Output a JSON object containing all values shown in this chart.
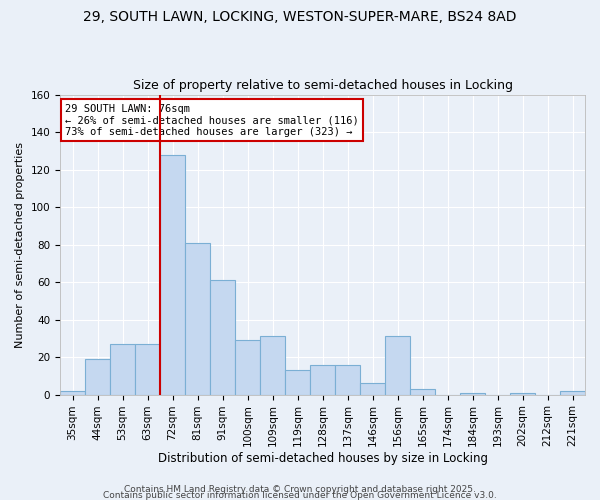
{
  "title1": "29, SOUTH LAWN, LOCKING, WESTON-SUPER-MARE, BS24 8AD",
  "title2": "Size of property relative to semi-detached houses in Locking",
  "xlabel": "Distribution of semi-detached houses by size in Locking",
  "ylabel": "Number of semi-detached properties",
  "bar_labels": [
    "35sqm",
    "44sqm",
    "53sqm",
    "63sqm",
    "72sqm",
    "81sqm",
    "91sqm",
    "100sqm",
    "109sqm",
    "119sqm",
    "128sqm",
    "137sqm",
    "146sqm",
    "156sqm",
    "165sqm",
    "174sqm",
    "184sqm",
    "193sqm",
    "202sqm",
    "212sqm",
    "221sqm"
  ],
  "bar_values": [
    2,
    19,
    27,
    27,
    128,
    81,
    61,
    29,
    31,
    13,
    16,
    16,
    6,
    31,
    3,
    0,
    1,
    0,
    1,
    0,
    2
  ],
  "bar_color": "#c5d8f0",
  "bar_edge_color": "#7bafd4",
  "annotation_line1": "29 SOUTH LAWN: 76sqm",
  "annotation_line2": "← 26% of semi-detached houses are smaller (116)",
  "annotation_line3": "73% of semi-detached houses are larger (323) →",
  "vline_index": 4,
  "vline_color": "#cc0000",
  "box_edge_color": "#cc0000",
  "ylim": [
    0,
    160
  ],
  "yticks": [
    0,
    20,
    40,
    60,
    80,
    100,
    120,
    140,
    160
  ],
  "bg_color": "#eaf0f8",
  "grid_color": "#ffffff",
  "footer1": "Contains HM Land Registry data © Crown copyright and database right 2025.",
  "footer2": "Contains public sector information licensed under the Open Government Licence v3.0.",
  "title1_fontsize": 10,
  "title2_fontsize": 9,
  "xlabel_fontsize": 8.5,
  "ylabel_fontsize": 8,
  "tick_fontsize": 7.5,
  "footer_fontsize": 6.5,
  "annot_fontsize": 7.5
}
